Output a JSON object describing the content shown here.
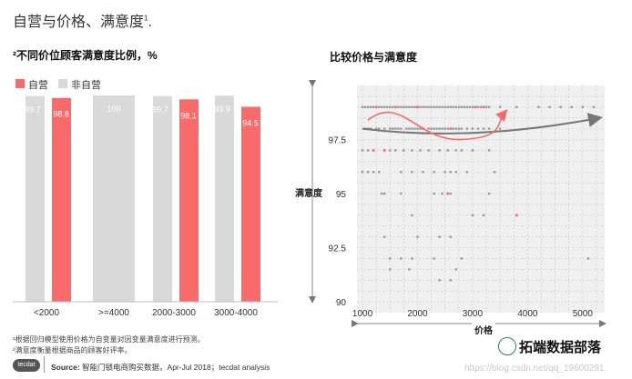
{
  "page_title": "自营与价格、满意度",
  "page_title_sup": "1",
  "colors": {
    "self": "#f96b6b",
    "nonself": "#d9d9d9",
    "scatter_bg": "#f0f0f0",
    "trend": "#777777",
    "arrow": "#f36b6b",
    "points": "#9a9a9a"
  },
  "footnotes": [
    "¹根据回归模型使用价格为自变量对因变量满意度进行预测。",
    "²满意度衡量根据商品的顾客好评率。"
  ],
  "logo": "tecdat",
  "source": {
    "prefix": "Source:",
    "text": " 智能门锁电商购买数据，Apr-Jul 2018；tecdat analysis"
  },
  "watermark": "拓端数据部落",
  "csdn": "https://blog.csdn.net/qq_19600291",
  "chart_data": [
    {
      "type": "bar",
      "title": "²不同价位顾客满意度比例，%",
      "legend": [
        "自营",
        "非自营"
      ],
      "categories": [
        "<2000",
        ">=4000",
        "2000-3000",
        "3000-4000"
      ],
      "series": [
        {
          "name": "非自营",
          "values": [
            99.7,
            100,
            99.7,
            99.9
          ],
          "labels": [
            "99.7",
            "100",
            "99.7",
            "99.9"
          ]
        },
        {
          "name": "自营",
          "values": [
            98.8,
            null,
            98.1,
            94.5
          ],
          "labels": [
            "98.8",
            "",
            "98.1",
            "94.5"
          ]
        }
      ],
      "ylim": [
        0,
        100
      ],
      "xlabel": "",
      "ylabel": ""
    },
    {
      "type": "scatter",
      "title": "比较价格与满意度",
      "xlabel": "价格",
      "ylabel": "满意度",
      "xlim": [
        900,
        5400
      ],
      "ylim": [
        89.5,
        100
      ],
      "xticks": [
        1000,
        2000,
        3000,
        4000,
        5000
      ],
      "yticks": [
        90,
        92.5,
        95,
        97.5
      ],
      "ytick_labels": [
        "90",
        "92.5",
        "95",
        "97.5"
      ],
      "grid": true,
      "trend": [
        [
          1000,
          98.0
        ],
        [
          3000,
          97.8
        ],
        [
          5300,
          98.5
        ]
      ],
      "points_gray": [
        [
          1000,
          99
        ],
        [
          1050,
          99
        ],
        [
          1100,
          99
        ],
        [
          1150,
          99
        ],
        [
          1200,
          99
        ],
        [
          1250,
          99
        ],
        [
          1300,
          99
        ],
        [
          1350,
          99
        ],
        [
          1400,
          99
        ],
        [
          1450,
          99
        ],
        [
          1500,
          99
        ],
        [
          1550,
          99
        ],
        [
          1600,
          99
        ],
        [
          1650,
          99
        ],
        [
          1700,
          99
        ],
        [
          1750,
          99
        ],
        [
          1800,
          99
        ],
        [
          1850,
          99
        ],
        [
          1900,
          99
        ],
        [
          1950,
          99
        ],
        [
          2000,
          99
        ],
        [
          2050,
          99
        ],
        [
          2100,
          99
        ],
        [
          2150,
          99
        ],
        [
          2200,
          99
        ],
        [
          2250,
          99
        ],
        [
          2300,
          99
        ],
        [
          2350,
          99
        ],
        [
          2400,
          99
        ],
        [
          2450,
          99
        ],
        [
          2500,
          99
        ],
        [
          2550,
          99
        ],
        [
          2600,
          99
        ],
        [
          2650,
          99
        ],
        [
          2700,
          99
        ],
        [
          2750,
          99
        ],
        [
          2800,
          99
        ],
        [
          2850,
          99
        ],
        [
          2900,
          99
        ],
        [
          2950,
          99
        ],
        [
          3000,
          99
        ],
        [
          3050,
          99
        ],
        [
          3100,
          99
        ],
        [
          3150,
          99
        ],
        [
          3200,
          99
        ],
        [
          3250,
          99
        ],
        [
          3300,
          99
        ],
        [
          3500,
          99
        ],
        [
          3800,
          99
        ],
        [
          4200,
          99
        ],
        [
          4400,
          99
        ],
        [
          4600,
          99
        ],
        [
          4800,
          99
        ],
        [
          5000,
          99
        ],
        [
          5200,
          99
        ],
        [
          1050,
          98
        ],
        [
          1100,
          98
        ],
        [
          1150,
          98
        ],
        [
          1250,
          98
        ],
        [
          1300,
          98
        ],
        [
          1400,
          98
        ],
        [
          1500,
          98
        ],
        [
          1550,
          98
        ],
        [
          1600,
          98
        ],
        [
          1650,
          98
        ],
        [
          1700,
          98
        ],
        [
          1800,
          98
        ],
        [
          1850,
          98
        ],
        [
          1900,
          98
        ],
        [
          1950,
          98
        ],
        [
          2000,
          98
        ],
        [
          2050,
          98
        ],
        [
          2100,
          98
        ],
        [
          2200,
          98
        ],
        [
          2250,
          98
        ],
        [
          2300,
          98
        ],
        [
          2350,
          98
        ],
        [
          2400,
          98
        ],
        [
          2450,
          98
        ],
        [
          2500,
          98
        ],
        [
          2550,
          98
        ],
        [
          2600,
          98
        ],
        [
          2650,
          98
        ],
        [
          2700,
          98
        ],
        [
          2750,
          98
        ],
        [
          2800,
          98
        ],
        [
          2900,
          98
        ],
        [
          3000,
          98
        ],
        [
          3100,
          98
        ],
        [
          3200,
          98
        ],
        [
          3300,
          98
        ],
        [
          3500,
          98
        ],
        [
          1000,
          97
        ],
        [
          1100,
          97
        ],
        [
          1200,
          97
        ],
        [
          1400,
          97
        ],
        [
          1500,
          97
        ],
        [
          1600,
          97
        ],
        [
          1750,
          97
        ],
        [
          1900,
          97
        ],
        [
          2050,
          97
        ],
        [
          2200,
          97
        ],
        [
          2400,
          97
        ],
        [
          2550,
          97
        ],
        [
          2700,
          97
        ],
        [
          2800,
          97
        ],
        [
          3000,
          97
        ],
        [
          3300,
          97
        ],
        [
          1000,
          96
        ],
        [
          1100,
          96
        ],
        [
          1200,
          96
        ],
        [
          1300,
          96
        ],
        [
          1700,
          96
        ],
        [
          1900,
          96
        ],
        [
          2100,
          96
        ],
        [
          2300,
          96
        ],
        [
          2500,
          96
        ],
        [
          2600,
          96
        ],
        [
          2700,
          96
        ],
        [
          2900,
          96
        ],
        [
          3400,
          96
        ],
        [
          1350,
          95
        ],
        [
          1400,
          95
        ],
        [
          1700,
          95
        ],
        [
          2300,
          95
        ],
        [
          2450,
          95
        ],
        [
          2550,
          95
        ],
        [
          2600,
          95
        ],
        [
          3300,
          95
        ],
        [
          1900,
          94
        ],
        [
          3000,
          94
        ],
        [
          3200,
          94
        ],
        [
          3800,
          94
        ],
        [
          1400,
          93
        ],
        [
          2000,
          93
        ],
        [
          2400,
          93
        ],
        [
          2600,
          93
        ],
        [
          1500,
          92
        ],
        [
          1700,
          92
        ],
        [
          1900,
          92
        ],
        [
          2300,
          92
        ],
        [
          2800,
          92
        ],
        [
          5100,
          92
        ],
        [
          1500,
          91.5
        ],
        [
          1850,
          91.5
        ],
        [
          2700,
          91.5
        ],
        [
          2400,
          91
        ],
        [
          2600,
          91
        ]
      ],
      "points_red": [
        [
          1250,
          99
        ],
        [
          1600,
          99
        ],
        [
          2000,
          99
        ],
        [
          2100,
          98
        ],
        [
          2600,
          98
        ],
        [
          3200,
          99
        ],
        [
          1400,
          97
        ],
        [
          1200,
          97
        ],
        [
          2550,
          95
        ],
        [
          3050,
          99
        ],
        [
          3800,
          94
        ]
      ]
    }
  ]
}
